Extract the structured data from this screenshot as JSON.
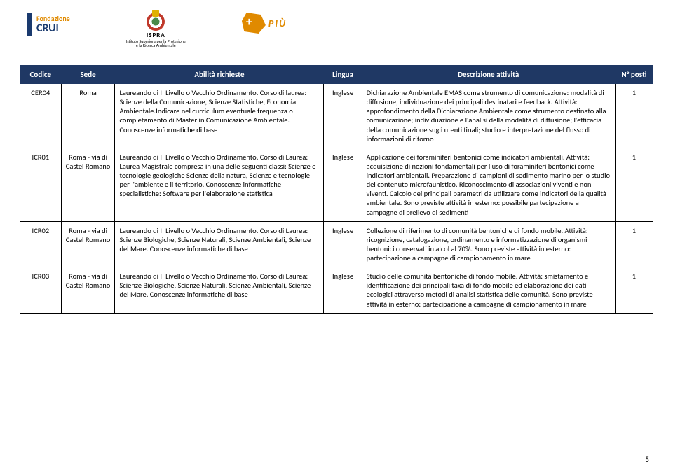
{
  "header": {
    "columns": [
      "Codice",
      "Sede",
      "Abilità richieste",
      "Lingua",
      "Descrizione attività",
      "N° posti"
    ]
  },
  "logos": {
    "crui_line1": "Fondazione",
    "crui_line2": "CRUI",
    "ispra_name": "ISPRA",
    "ispra_sub1": "Istituto Superiore per la Protezione",
    "ispra_sub2": "e la Ricerca Ambientale",
    "piu_text": "PIÙ"
  },
  "rows": [
    {
      "code": "CER04",
      "sede": "Roma",
      "abilita": "Laureando di II Livello o Vecchio Ordinamento. Corso di laurea: Scienze della Comunicazione, Scienze Statistiche, Economia Ambientale.Indicare nel curriculum eventuale frequenza o completamento di Master in Comunicazione Ambientale. Conoscenze informatiche di base",
      "lingua": "Inglese",
      "desc": "Dichiarazione Ambientale EMAS come strumento di comunicazione: modalità di diffusione, individuazione dei principali destinatari e feedback. Attività: approfondimento della Dichiarazione Ambientale come strumento destinato alla comunicazione; individuazione e l'analisi della modalità di diffusione; l'efficacia della comunicazione sugli utenti finali;  studio e interpretazione del flusso di informazioni di ritorno",
      "posti": "1"
    },
    {
      "code": "ICR01",
      "sede": "Roma - via di Castel Romano",
      "abilita": "Laureando di II Livello o Vecchio Ordinamento. Corso di Laurea: Laurea Magistrale compresa in una delle seguenti classi: Scienze e tecnologie geologiche  Scienze della natura, Scienze e tecnologie per l'ambiente e il territorio. Conoscenze informatiche specialistiche:  Software per l'elaborazione statistica",
      "lingua": "Inglese",
      "desc": "Applicazione dei foraminiferi bentonici come indicatori ambientali. Attività: acquisizione di nozioni fondamentali per l'uso di foraminiferi bentonici come indicatori ambientali. Preparazione di campioni di sedimento marino per lo studio del contenuto microfaunistico. Riconoscimento di associazioni viventi e non viventi. Calcolo dei principali parametri da utilizzare come indicatori della qualità ambientale. Sono previste attività in esterno: possibile partecipazione a campagne di prelievo di sedimenti",
      "posti": "1"
    },
    {
      "code": "ICR02",
      "sede": "Roma - via di Castel Romano",
      "abilita": "Laureando di II Livello o Vecchio Ordinamento. Corso di Laurea: Scienze Biologiche, Scienze Naturali, Scienze Ambientali, Scienze del Mare. Conoscenze informatiche di base",
      "lingua": "Inglese",
      "desc": "Collezione di riferimento di comunità bentoniche di fondo mobile. Attività:  ricognizione, catalogazione, ordinamento e informatizzazione di  organismi bentonici conservati in alcol al 70%. Sono previste attività in esterno: partecipazione a campagne di campionamento in mare",
      "posti": "1"
    },
    {
      "code": "ICR03",
      "sede": "Roma - via di Castel Romano",
      "abilita": "Laureando di II Livello o Vecchio Ordinamento. Corso di Laurea: Scienze Biologiche, Scienze Naturali, Scienze Ambientali, Scienze del Mare. Conoscenze informatiche di base",
      "lingua": "Inglese",
      "desc": "Studio delle comunità bentoniche di fondo mobile. Attività: smistamento e identificazione dei principali taxa di fondo mobile ed elaborazione dei dati ecologici attraverso metodi di analisi statistica delle comunità.  Sono previste attività in esterno: partecipazione a campagne di campionamento in mare",
      "posti": "1"
    }
  ],
  "page_number": "5",
  "colors": {
    "header_bg": "#1f3864",
    "header_fg": "#ffffff",
    "border": "#000000",
    "accent_orange": "#e08a00",
    "accent_blue": "#1a3a6e"
  }
}
